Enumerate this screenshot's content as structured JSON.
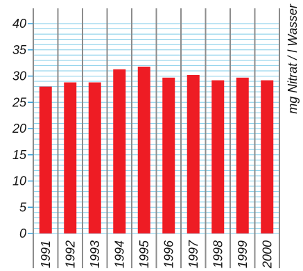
{
  "chart_data": {
    "type": "bar",
    "categories": [
      "1991",
      "1992",
      "1993",
      "1994",
      "1995",
      "1996",
      "1997",
      "1998",
      "1999",
      "2000"
    ],
    "values": [
      28,
      28.8,
      28.8,
      31.3,
      31.8,
      29.7,
      30.2,
      29.2,
      29.7,
      29.2
    ],
    "title": "",
    "xlabel": "",
    "ylabel": "mg Nitrat / l Wasser",
    "ylim": [
      0,
      40
    ],
    "yticks": [
      0,
      5,
      10,
      15,
      20,
      25,
      30,
      35,
      40
    ],
    "minor_grid_step": 1,
    "grid": true,
    "ylabel_position": "right",
    "colors": {
      "bar": "#ee1c24",
      "grid": "#7ecbe8",
      "category_separator": "#8c8c8c",
      "tick_mark": "#3aa0d8",
      "text": "#111111"
    }
  }
}
